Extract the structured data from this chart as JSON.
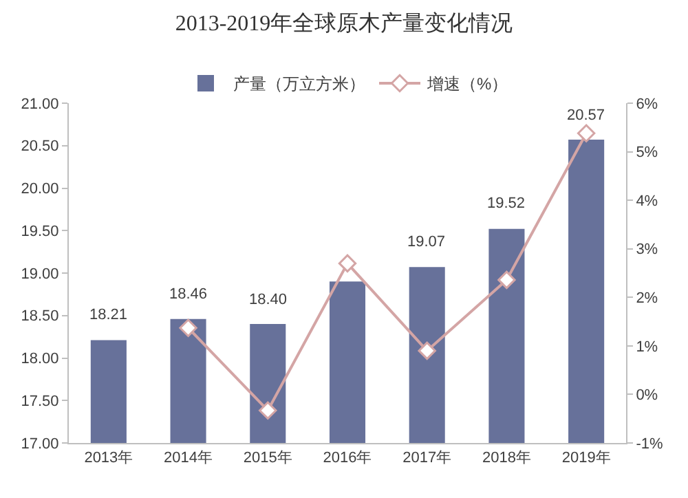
{
  "chart_data": {
    "type": "bar",
    "title": "2013-2019年全球原木产量变化情况",
    "categories": [
      "2013年",
      "2014年",
      "2015年",
      "2016年",
      "2017年",
      "2018年",
      "2019年"
    ],
    "series": [
      {
        "name": "产量（万立方米）",
        "color": "#67719a",
        "values": [
          18.21,
          18.46,
          18.4,
          18.9,
          19.07,
          19.52,
          20.57
        ],
        "value_labels": [
          "18.21",
          "18.46",
          "18.40",
          null,
          "19.07",
          "19.52",
          "20.57"
        ]
      },
      {
        "name": "增速（%）",
        "type": "line",
        "axis": "y2",
        "color": "#d4a5a5",
        "marker": "diamond",
        "values": [
          null,
          1.37,
          -0.33,
          2.7,
          0.9,
          2.36,
          5.38
        ]
      }
    ],
    "ylim": [
      17,
      21
    ],
    "yticks": [
      {
        "value": 17,
        "label": "17.00"
      },
      {
        "value": 17.5,
        "label": "17.50"
      },
      {
        "value": 18,
        "label": "18.00"
      },
      {
        "value": 18.5,
        "label": "18.50"
      },
      {
        "value": 19,
        "label": "19.00"
      },
      {
        "value": 19.5,
        "label": "19.50"
      },
      {
        "value": 20,
        "label": "20.00"
      },
      {
        "value": 20.5,
        "label": "20.50"
      },
      {
        "value": 21,
        "label": "21.00"
      }
    ],
    "y2lim": [
      -1,
      6
    ],
    "y2ticks": [
      {
        "value": -1,
        "label": "-1%"
      },
      {
        "value": 0,
        "label": "0%"
      },
      {
        "value": 1,
        "label": "1%"
      },
      {
        "value": 2,
        "label": "2%"
      },
      {
        "value": 3,
        "label": "3%"
      },
      {
        "value": 4,
        "label": "4%"
      },
      {
        "value": 5,
        "label": "5%"
      },
      {
        "value": 6,
        "label": "6%"
      }
    ],
    "grid": false,
    "legend": "top"
  }
}
